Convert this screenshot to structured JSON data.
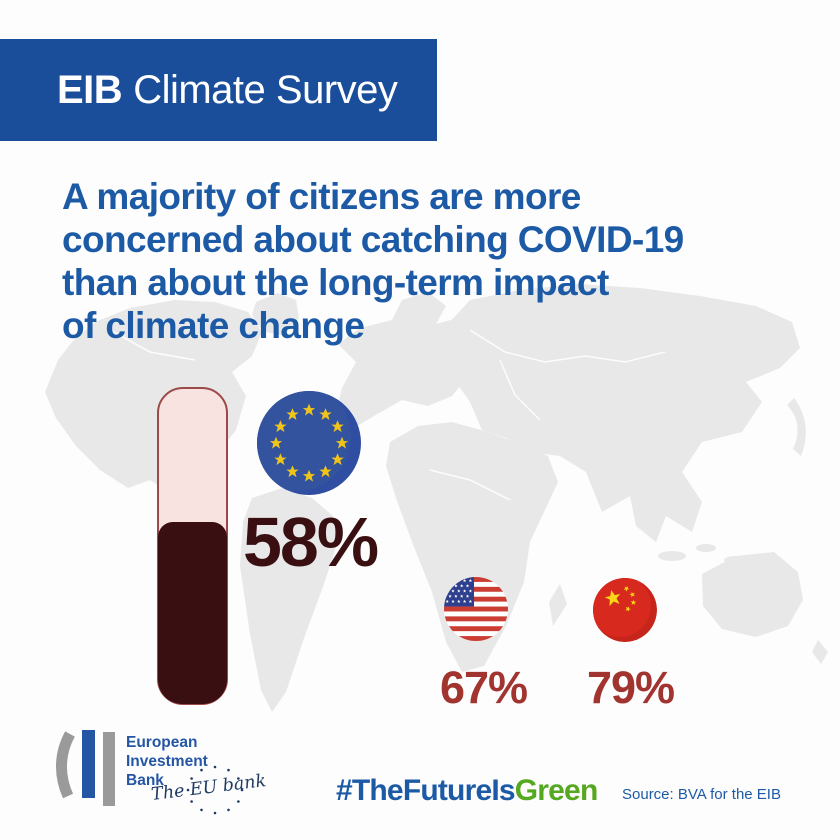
{
  "banner": {
    "brand": "EIB",
    "title": "Climate Survey"
  },
  "headline": {
    "lines": [
      "A majority of citizens are more",
      "concerned about catching COVID-19",
      "than about the long-term impact",
      "of climate change"
    ]
  },
  "chart_data": {
    "type": "bar",
    "title": "A majority of citizens are more concerned about catching COVID-19 than about the long-term impact of climate change",
    "categories": [
      "European Union",
      "United States",
      "China"
    ],
    "values": [
      58,
      67,
      79
    ],
    "unit": "%",
    "ylim": [
      0,
      100
    ],
    "legend": false,
    "notes": "EU value drawn as a 58%-filled thermometer-style bar; US and China values shown as percentages under circular flags"
  },
  "stats": [
    {
      "region": "European Union",
      "value": "58%"
    },
    {
      "region": "United States",
      "value": "67%"
    },
    {
      "region": "China",
      "value": "79%"
    }
  ],
  "footer": {
    "logo": {
      "lines": [
        "European",
        "Investment",
        "Bank"
      ],
      "tagline": "The EU bank"
    },
    "hashtag": {
      "prefix": "#TheFutureIs",
      "suffix": "Green"
    },
    "source": "Source: BVA for the EIB"
  },
  "colors": {
    "banner_blue": "#1a4e9b",
    "headline_blue": "#1d5aa6",
    "dark_maroon": "#3a0f11",
    "brick_red": "#a23430",
    "tube_pink": "#f9e3e0",
    "tube_border": "#9c4a49",
    "hashtag_green": "#55a81f",
    "eu_flag_blue": "#2f4da1",
    "flag_star_gold": "#f0c419",
    "us_flag_red": "#cb3d33",
    "us_canton_blue": "#2d3f8d",
    "cn_flag_red": "#d7291d",
    "map_gray": "#e8e8e8"
  }
}
